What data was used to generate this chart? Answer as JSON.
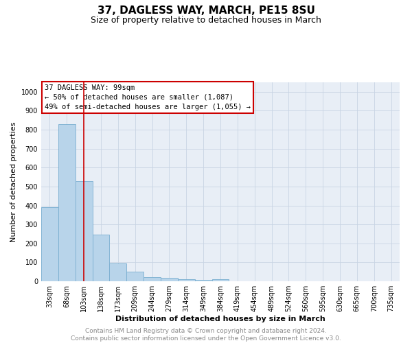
{
  "title1": "37, DAGLESS WAY, MARCH, PE15 8SU",
  "title2": "Size of property relative to detached houses in March",
  "xlabel": "Distribution of detached houses by size in March",
  "ylabel": "Number of detached properties",
  "categories": [
    "33sqm",
    "68sqm",
    "103sqm",
    "138sqm",
    "173sqm",
    "209sqm",
    "244sqm",
    "279sqm",
    "314sqm",
    "349sqm",
    "384sqm",
    "419sqm",
    "454sqm",
    "489sqm",
    "524sqm",
    "560sqm",
    "595sqm",
    "630sqm",
    "665sqm",
    "700sqm",
    "735sqm"
  ],
  "values": [
    390,
    830,
    530,
    245,
    95,
    50,
    22,
    18,
    12,
    8,
    10,
    0,
    0,
    0,
    0,
    0,
    0,
    0,
    0,
    0,
    0
  ],
  "bar_color": "#b8d4ea",
  "bar_edge_color": "#7aaed0",
  "vline_x": 2,
  "vline_color": "#cc0000",
  "annotation_box_text": "37 DAGLESS WAY: 99sqm\n← 50% of detached houses are smaller (1,087)\n49% of semi-detached houses are larger (1,055) →",
  "ylim": [
    0,
    1050
  ],
  "yticks": [
    0,
    100,
    200,
    300,
    400,
    500,
    600,
    700,
    800,
    900,
    1000
  ],
  "grid_color": "#c8d4e4",
  "bg_color": "#e8eef6",
  "footer_text": "Contains HM Land Registry data © Crown copyright and database right 2024.\nContains public sector information licensed under the Open Government Licence v3.0.",
  "title_fontsize": 11,
  "subtitle_fontsize": 9,
  "annotation_fontsize": 7.5,
  "footer_fontsize": 6.5,
  "tick_fontsize": 7,
  "ylabel_fontsize": 8,
  "xlabel_fontsize": 8
}
